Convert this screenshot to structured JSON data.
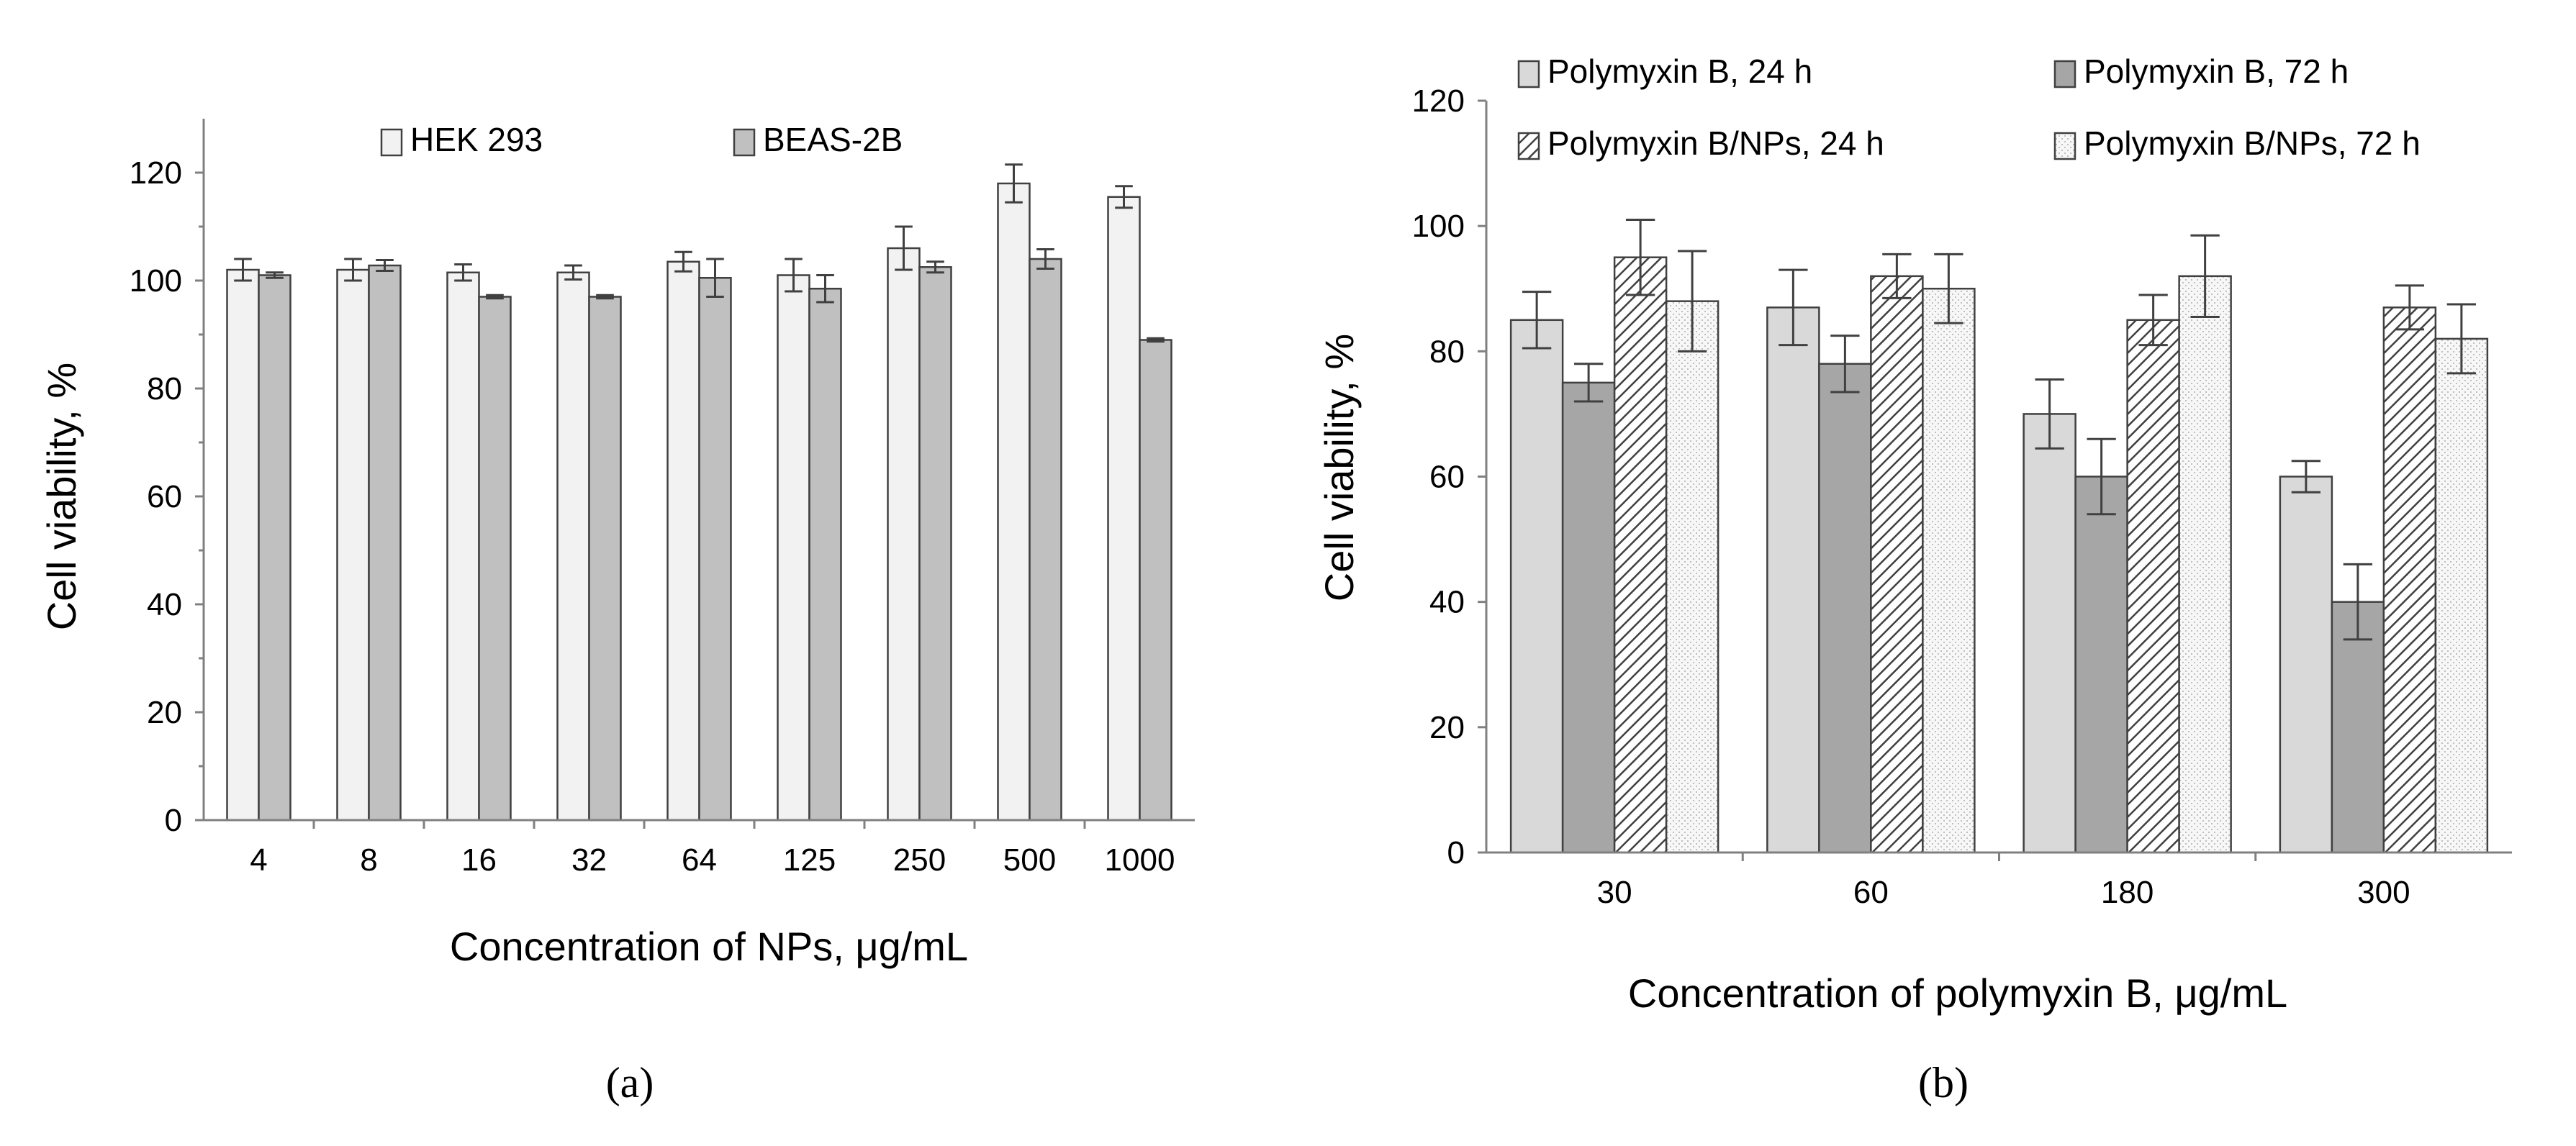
{
  "chart_data": [
    {
      "type": "bar",
      "panel": "a",
      "categories": [
        "4",
        "8",
        "16",
        "32",
        "64",
        "125",
        "250",
        "500",
        "1000"
      ],
      "series": [
        {
          "name": "HEK 293",
          "values": [
            102,
            102,
            101.5,
            101.5,
            103.5,
            101,
            106,
            118,
            115.5
          ],
          "errors": [
            2,
            2,
            1.5,
            1.3,
            1.8,
            3,
            4,
            3.5,
            2
          ],
          "color": "#f2f2f2",
          "pattern": "solid"
        },
        {
          "name": "BEAS-2B",
          "values": [
            101,
            102.8,
            97,
            97,
            100.5,
            98.5,
            102.5,
            104,
            89
          ],
          "errors": [
            0.5,
            1,
            0.3,
            0.3,
            3.5,
            2.5,
            1,
            1.8,
            0.3
          ],
          "color": "#c0c0c0",
          "pattern": "solid"
        }
      ],
      "xlabel": "Concentration of NPs, μg/mL",
      "ylabel": "Cell viability, %",
      "ylim": [
        0,
        130
      ],
      "yticks": [
        0,
        20,
        40,
        60,
        80,
        100,
        120
      ],
      "legend_position": "top",
      "label": "(a)"
    },
    {
      "type": "bar",
      "panel": "b",
      "categories": [
        "30",
        "60",
        "180",
        "300"
      ],
      "series": [
        {
          "name": "Polymyxin B, 24 h",
          "values": [
            85,
            87,
            70,
            60
          ],
          "errors": [
            4.5,
            6,
            5.5,
            2.5
          ],
          "color": "#d9d9d9",
          "pattern": "solid"
        },
        {
          "name": "Polymyxin B, 72 h",
          "values": [
            75,
            78,
            60,
            40
          ],
          "errors": [
            3,
            4.5,
            6,
            6
          ],
          "color": "#a6a6a6",
          "pattern": "solid"
        },
        {
          "name": "Polymyxin B/NPs, 24 h",
          "values": [
            95,
            92,
            85,
            87
          ],
          "errors": [
            6,
            3.5,
            4,
            3.5
          ],
          "color": "#ffffff",
          "pattern": "hatch"
        },
        {
          "name": "Polymyxin B/NPs, 72 h",
          "values": [
            88,
            90,
            92,
            82
          ],
          "errors": [
            8,
            5.5,
            6.5,
            5.5
          ],
          "color": "#ffffff",
          "pattern": "dots"
        }
      ],
      "xlabel": "Concentration of polymyxin B, μg/mL",
      "ylabel": "Cell viability, %",
      "ylim": [
        0,
        120
      ],
      "yticks": [
        0,
        20,
        40,
        60,
        80,
        100,
        120
      ],
      "legend_position": "top",
      "label": "(b)"
    }
  ]
}
